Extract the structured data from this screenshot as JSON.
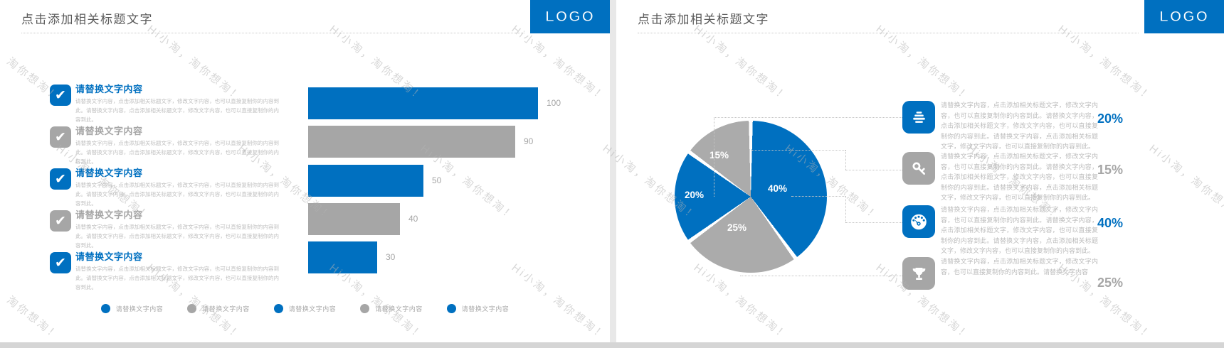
{
  "colors": {
    "blue": "#0070C0",
    "gray": "#A6A6A6",
    "pie_gray": "#ABABAB",
    "logo_bg": "#0070C0"
  },
  "watermark": {
    "text": "Hi小淘，淘你想淘！"
  },
  "slide_left": {
    "title": "点击添加相关标题文字",
    "logo": "LOGO",
    "items": [
      {
        "title": "请替换文字内容",
        "body": "请替换文字内容，点击添加相关标题文字，修改文字内容，也可以直接复制你的内容到此。请替换文字内容，点击添加相关标题文字，修改文字内容，也可以直接复制你的内容到此。",
        "color": "blue"
      },
      {
        "title": "请替换文字内容",
        "body": "请替换文字内容，点击添加相关标题文字，修改文字内容，也可以直接复制你的内容到此。请替换文字内容，点击添加相关标题文字，修改文字内容，也可以直接复制你的内容到此。",
        "color": "gray"
      },
      {
        "title": "请替换文字内容",
        "body": "请替换文字内容，点击添加相关标题文字，修改文字内容，也可以直接复制你的内容到此。请替换文字内容，点击添加相关标题文字，修改文字内容，也可以直接复制你的内容到此。",
        "color": "blue"
      },
      {
        "title": "请替换文字内容",
        "body": "请替换文字内容，点击添加相关标题文字，修改文字内容，也可以直接复制你的内容到此。请替换文字内容，点击添加相关标题文字，修改文字内容，也可以直接复制你的内容到此。",
        "color": "gray"
      },
      {
        "title": "请替换文字内容",
        "body": "请替换文字内容，点击添加相关标题文字，修改文字内容，也可以直接复制你的内容到此。请替换文字内容，点击添加相关标题文字，修改文字内容，也可以直接复制你的内容到此。",
        "color": "blue"
      }
    ],
    "legend": [
      {
        "label": "请替换文字内容",
        "color": "blue"
      },
      {
        "label": "请替换文字内容",
        "color": "gray"
      },
      {
        "label": "请替换文字内容",
        "color": "blue"
      },
      {
        "label": "请替换文字内容",
        "color": "gray"
      },
      {
        "label": "请替换文字内容",
        "color": "blue"
      }
    ]
  },
  "slide_right": {
    "title": "点击添加相关标题文字",
    "logo": "LOGO",
    "rows": [
      {
        "icon": "funnel-icon",
        "color": "blue",
        "percent": "20%",
        "text": "请替换文字内容，点击添加相关标题文字，修改文字内容，也可以直接复制你的内容到此。请替换文字内容，点击添加相关标题文字，修改文字内容，也可以直接复制你的内容到此。请替换文字内容，点击添加相关标题文字，修改文字内容，也可以直接复制你的内容到此。"
      },
      {
        "icon": "key-icon",
        "color": "gray",
        "percent": "15%",
        "text": "请替换文字内容，点击添加相关标题文字，修改文字内容，也可以直接复制你的内容到此。请替换文字内容，点击添加相关标题文字，修改文字内容，也可以直接复制你的内容到此。请替换文字内容，点击添加相关标题文字，修改文字内容，也可以直接复制你的内容到此。"
      },
      {
        "icon": "gauge-icon",
        "color": "blue",
        "percent": "40%",
        "text": "请替换文字内容，点击添加相关标题文字，修改文字内容，也可以直接复制你的内容到此。请替换文字内容，点击添加相关标题文字，修改文字内容，也可以直接复制你的内容到此。请替换文字内容，点击添加相关标题文字，修改文字内容，也可以直接复制你的内容到此。"
      },
      {
        "icon": "trophy-icon",
        "color": "gray",
        "percent": "25%",
        "text": "请替换文字内容，点击添加相关标题文字，修改文字内容，也可以直接复制你的内容到此。请替换文字内容"
      }
    ]
  },
  "chart_data": [
    {
      "type": "bar",
      "orientation": "horizontal",
      "categories": [
        "请替换文字内容",
        "请替换文字内容",
        "请替换文字内容",
        "请替换文字内容",
        "请替换文字内容"
      ],
      "values": [
        100,
        90,
        50,
        40,
        30
      ],
      "value_labels": [
        "100",
        "90",
        "50",
        "40",
        "30"
      ],
      "bar_colors": [
        "blue",
        "gray",
        "blue",
        "gray",
        "blue"
      ],
      "xlim": [
        0,
        100
      ],
      "grid": false,
      "legend_position": "bottom"
    },
    {
      "type": "pie",
      "labels": [
        "40%",
        "25%",
        "20%",
        "15%"
      ],
      "values": [
        40,
        25,
        20,
        15
      ],
      "slice_colors": [
        "blue",
        "gray",
        "blue",
        "gray"
      ],
      "start_angle_deg": 0,
      "direction": "clockwise",
      "label_position": "inside"
    }
  ]
}
